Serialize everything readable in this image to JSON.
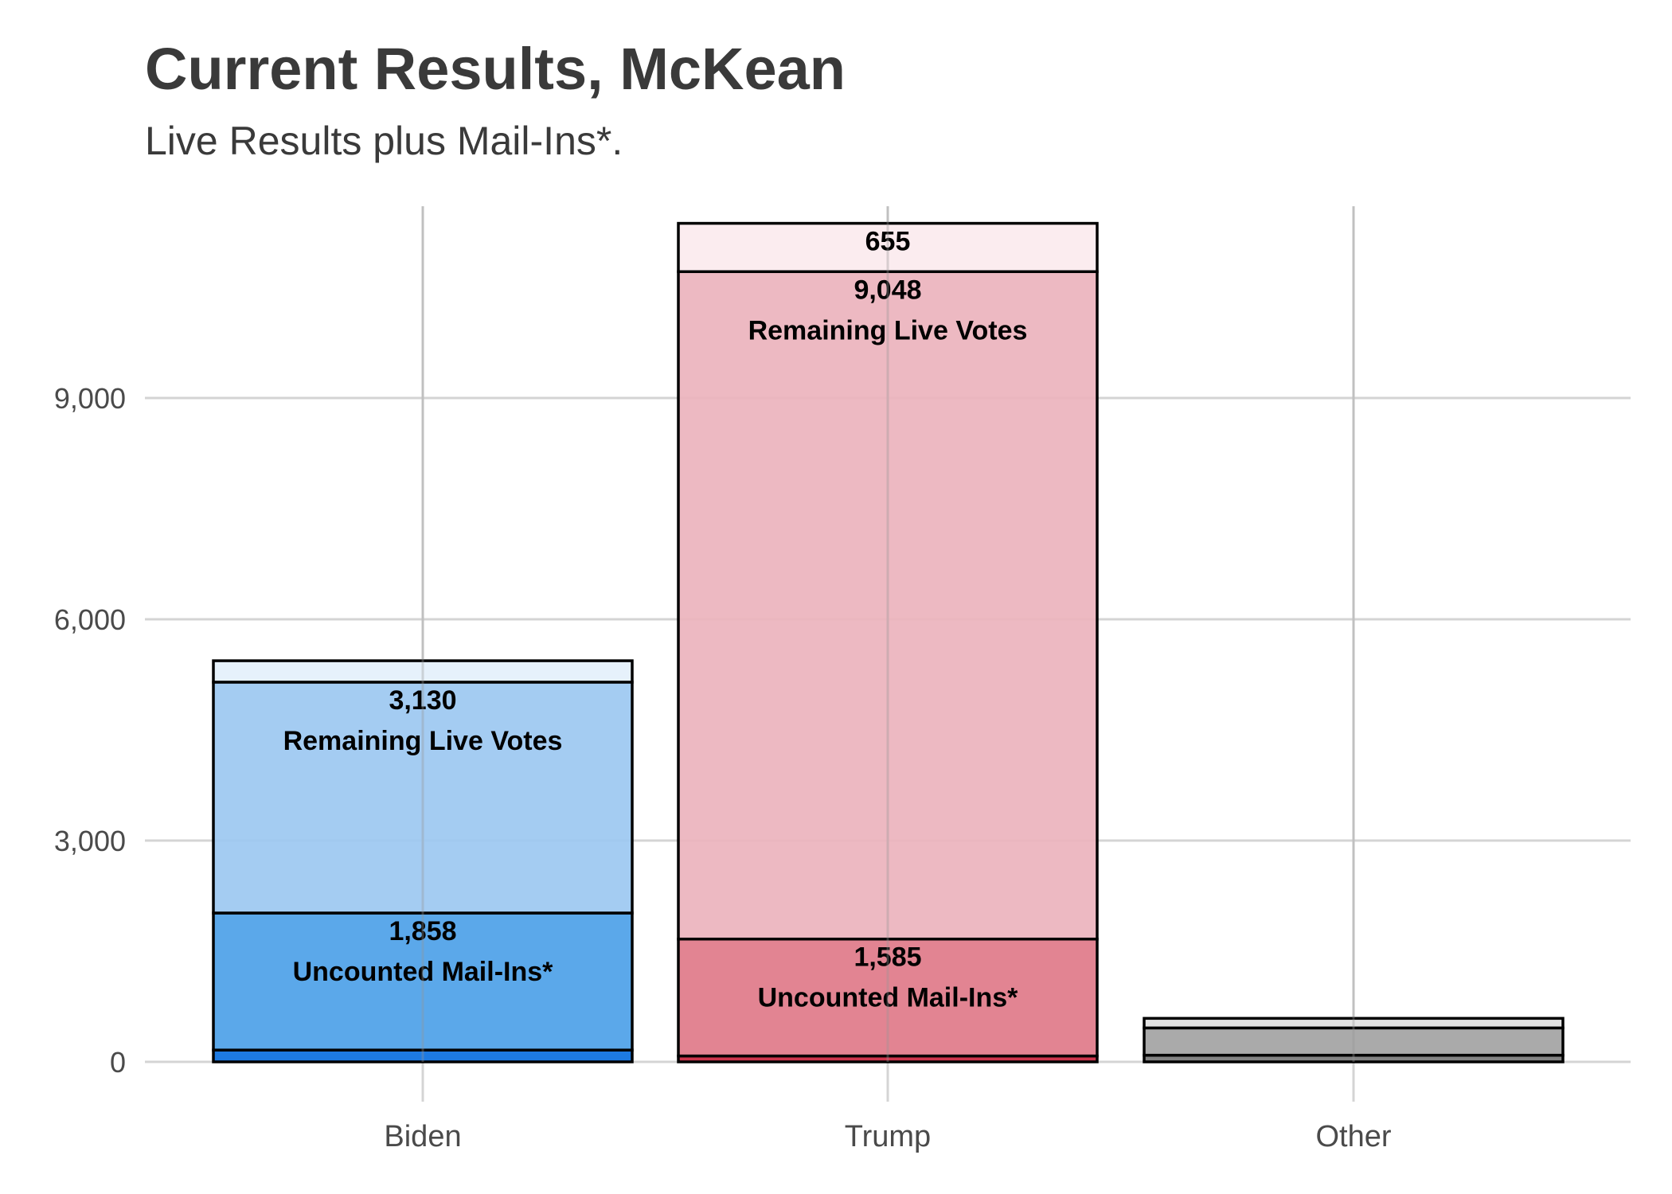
{
  "chart_data": {
    "type": "bar",
    "stacked": true,
    "title": "Current Results, McKean",
    "subtitle": "Live Results plus Mail-Ins*.",
    "xlabel": "",
    "ylabel": "",
    "ylim": [
      0,
      11600
    ],
    "yticks": [
      0,
      3000,
      6000,
      9000
    ],
    "ytick_labels": [
      "0",
      "3,000",
      "6,000",
      "9,000"
    ],
    "categories": [
      "Biden",
      "Trump",
      "Other"
    ],
    "grid": true,
    "bars": [
      {
        "category": "Biden",
        "segments": [
          {
            "value": 160,
            "color": "#0a6fe0"
          },
          {
            "value": 1858,
            "color": "#4da1e8",
            "label_value": "1,858",
            "label_text": "Uncounted Mail-Ins*"
          },
          {
            "value": 3130,
            "color": "#9cc8f1",
            "label_value": "3,130",
            "label_text": "Remaining Live Votes"
          },
          {
            "value": 290,
            "color": "#e4f0fb"
          }
        ]
      },
      {
        "category": "Trump",
        "segments": [
          {
            "value": 80,
            "color": "#c9243d"
          },
          {
            "value": 1585,
            "color": "#df7a89",
            "label_value": "1,585",
            "label_text": "Uncounted Mail-Ins*"
          },
          {
            "value": 9048,
            "color": "#ecb3bd",
            "label_value": "9,048",
            "label_text": "Remaining Live Votes"
          },
          {
            "value": 655,
            "color": "#fbeaee",
            "label_value": "655",
            "label_text": ""
          }
        ]
      },
      {
        "category": "Other",
        "segments": [
          {
            "value": 90,
            "color": "#777777"
          },
          {
            "value": 370,
            "color": "#a3a3a3"
          },
          {
            "value": 130,
            "color": "#e2e2e2"
          }
        ]
      }
    ]
  }
}
